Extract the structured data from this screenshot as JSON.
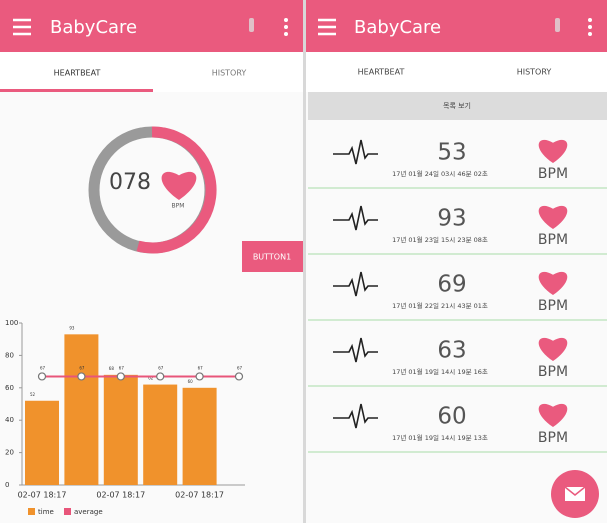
{
  "left": {
    "app_bar": {
      "title": "BabyCare"
    },
    "tabs": [
      "HEARTBEAT",
      "HISTORY"
    ],
    "gauge": {
      "value": "078",
      "unit": "BPM"
    },
    "button": "BUTTON1",
    "chart": {
      "type": "bar",
      "categories": [
        "02-07 18:17",
        null,
        "02-07 18:17",
        null,
        "02-07 18:17",
        null
      ],
      "series": [
        {
          "name": "time",
          "color": "#f0922c",
          "values": [
            52,
            93,
            68,
            62,
            60,
            null
          ]
        },
        {
          "name": "average",
          "color": "#e8557a",
          "values": [
            67,
            67,
            67,
            67,
            67,
            67
          ]
        }
      ],
      "ylim": [
        0,
        100
      ],
      "yticks": [
        0,
        20,
        40,
        60,
        80,
        100
      ]
    }
  },
  "right": {
    "app_bar": {
      "title": "BabyCare"
    },
    "tabs": [
      "HEARTBEAT",
      "HISTORY"
    ],
    "header": "목록 보기",
    "unit": "BPM",
    "rows": [
      {
        "bpm": "53",
        "time": "17년 01월 24일 03시 46분 02초"
      },
      {
        "bpm": "93",
        "time": "17년 01월 23일 15시 23분 08초"
      },
      {
        "bpm": "69",
        "time": "17년 01월 22일 21시 43분 01초"
      },
      {
        "bpm": "63",
        "time": "17년 01월 19일 14시 19분 16초"
      },
      {
        "bpm": "60",
        "time": "17년 01월 19일 14시 19분 13초"
      }
    ]
  }
}
